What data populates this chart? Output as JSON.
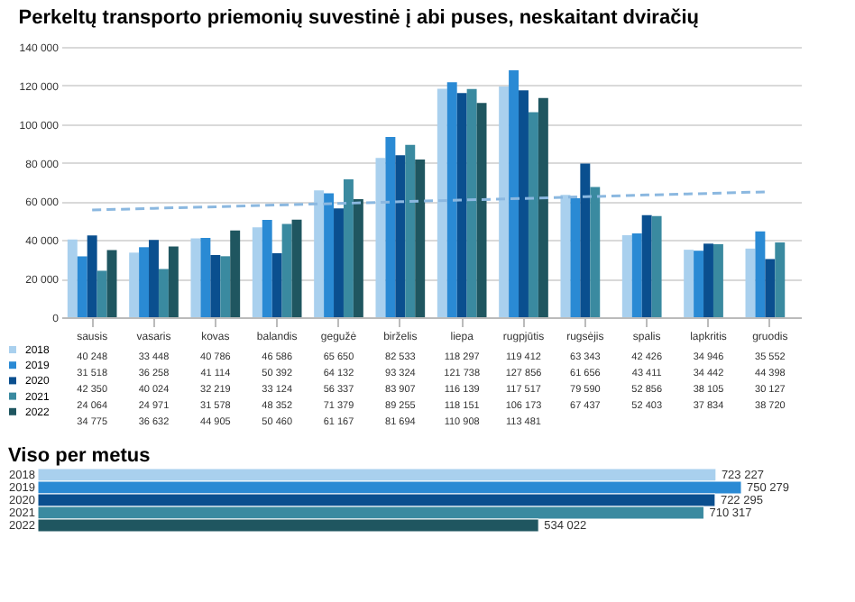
{
  "chart_data": [
    {
      "type": "bar",
      "title": "Perkeltų transporto priemonių suvestinė į abi puses, neskaitant dviračių",
      "categories": [
        "sausis",
        "vasaris",
        "kovas",
        "balandis",
        "gegužė",
        "birželis",
        "liepa",
        "rugpjūtis",
        "rugsėjis",
        "spalis",
        "lapkritis",
        "gruodis"
      ],
      "series": [
        {
          "name": "2018",
          "color": "#a9d0ee",
          "values": [
            40248,
            33448,
            40786,
            46586,
            65650,
            82533,
            118297,
            119412,
            63343,
            42426,
            34946,
            35552
          ],
          "value_labels": [
            "40 248",
            "33 448",
            "40 786",
            "46 586",
            "65 650",
            "82 533",
            "118 297",
            "119 412",
            "63 343",
            "42 426",
            "34 946",
            "35 552"
          ]
        },
        {
          "name": "2019",
          "color": "#2a8ad4",
          "values": [
            31518,
            36258,
            41114,
            50392,
            64132,
            93324,
            121738,
            127856,
            61656,
            43411,
            34442,
            44398
          ],
          "value_labels": [
            "31 518",
            "36 258",
            "41 114",
            "50 392",
            "64 132",
            "93 324",
            "121 738",
            "127 856",
            "61 656",
            "43 411",
            "34 442",
            "44 398"
          ]
        },
        {
          "name": "2020",
          "color": "#0a4f8f",
          "values": [
            42350,
            40024,
            32219,
            33124,
            56337,
            83907,
            116139,
            117517,
            79590,
            52856,
            38105,
            30127
          ],
          "value_labels": [
            "42 350",
            "40 024",
            "32 219",
            "33 124",
            "56 337",
            "83 907",
            "116 139",
            "117 517",
            "79 590",
            "52 856",
            "38 105",
            "30 127"
          ]
        },
        {
          "name": "2021",
          "color": "#3a8aa0",
          "values": [
            24064,
            24971,
            31578,
            48352,
            71379,
            89255,
            118151,
            106173,
            67437,
            52403,
            37834,
            38720
          ],
          "value_labels": [
            "24 064",
            "24 971",
            "31 578",
            "48 352",
            "71 379",
            "89 255",
            "118 151",
            "106 173",
            "67 437",
            "52 403",
            "37 834",
            "38 720"
          ]
        },
        {
          "name": "2022",
          "color": "#1f5660",
          "values": [
            34775,
            36632,
            44905,
            50460,
            61167,
            81694,
            110908,
            113481,
            null,
            null,
            null,
            null
          ],
          "value_labels": [
            "34 775",
            "36 632",
            "44 905",
            "50 460",
            "61 167",
            "81 694",
            "110 908",
            "113 481",
            null,
            null,
            null,
            null
          ]
        },
        {
          "type": "line",
          "color": "#8bb8e0",
          "line_style": "dashed",
          "values": [
            55500,
            56400,
            57200,
            58100,
            58900,
            59800,
            60700,
            61500,
            62400,
            63300,
            64100,
            65000
          ]
        }
      ],
      "ylim": [
        0,
        140000
      ],
      "yticks": [
        {
          "value": 0,
          "label": "0"
        },
        {
          "value": 20000,
          "label": "20 000"
        },
        {
          "value": 40000,
          "label": "40 000"
        },
        {
          "value": 60000,
          "label": "60 000"
        },
        {
          "value": 80000,
          "label": "80 000"
        },
        {
          "value": 100000,
          "label": "100 000"
        },
        {
          "value": 120000,
          "label": "120 000"
        },
        {
          "value": 140000,
          "label": "140 000"
        }
      ],
      "grid": "y",
      "legend": "bottom left"
    },
    {
      "type": "bar",
      "orientation": "horizontal",
      "title": "Viso per metus",
      "categories": [
        "2018",
        "2019",
        "2020",
        "2021",
        "2022"
      ],
      "values": [
        723227,
        750279,
        722295,
        710317,
        534022
      ],
      "colors": [
        "#a9d0ee",
        "#2a8ad4",
        "#0a4f8f",
        "#3a8aa0",
        "#1f5660"
      ],
      "value_labels": [
        "723 227",
        "750 279",
        "722 295",
        "710 317",
        "534 022"
      ],
      "tick_labels": "y"
    }
  ]
}
